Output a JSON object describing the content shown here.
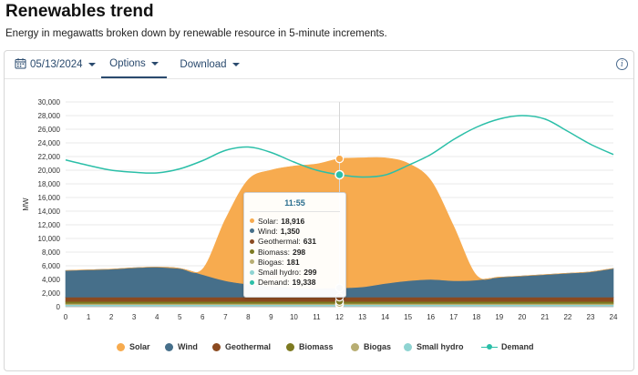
{
  "page": {
    "title": "Renewables trend",
    "subtitle": "Energy in megawatts broken down by renewable resource in 5-minute increments."
  },
  "toolbar": {
    "date": "05/13/2024",
    "options_label": "Options",
    "download_label": "Download",
    "info_icon": "info-icon",
    "calendar_icon": "calendar-icon"
  },
  "colors": {
    "solar": "#f7ab4f",
    "wind": "#466f8a",
    "geothermal": "#8b4a20",
    "biomass": "#7d7a21",
    "biogas": "#b8ae73",
    "small_hydro": "#8fd4d2",
    "demand": "#2bbfa8"
  },
  "chart_data": {
    "type": "area",
    "title": "",
    "xlabel": "",
    "ylabel": "MW",
    "xlim": [
      0,
      24
    ],
    "ylim": [
      0,
      30000
    ],
    "x_ticks": [
      0,
      1,
      2,
      3,
      4,
      5,
      6,
      7,
      8,
      9,
      10,
      11,
      12,
      13,
      14,
      15,
      16,
      17,
      18,
      19,
      20,
      21,
      22,
      23,
      24
    ],
    "y_ticks": [
      0,
      2000,
      4000,
      6000,
      8000,
      10000,
      12000,
      14000,
      16000,
      18000,
      20000,
      22000,
      24000,
      26000,
      28000,
      30000
    ],
    "y_tick_labels": [
      "0",
      "2,000",
      "4,000",
      "6,000",
      "8,000",
      "10,000",
      "12,000",
      "14,000",
      "16,000",
      "18,000",
      "20,000",
      "22,000",
      "24,000",
      "26,000",
      "28,000",
      "30,000"
    ],
    "grid": true,
    "legend_position": "bottom",
    "x": [
      0,
      1,
      2,
      3,
      4,
      5,
      6,
      7,
      8,
      9,
      10,
      11,
      12,
      13,
      14,
      15,
      16,
      17,
      18,
      19,
      20,
      21,
      22,
      23,
      24
    ],
    "stacked_series": [
      {
        "name": "Small hydro",
        "key": "small_hydro",
        "values": [
          300,
          300,
          300,
          300,
          300,
          300,
          300,
          300,
          300,
          300,
          300,
          300,
          299,
          300,
          300,
          300,
          300,
          300,
          300,
          300,
          300,
          300,
          300,
          300,
          300
        ]
      },
      {
        "name": "Biogas",
        "key": "biogas",
        "values": [
          180,
          180,
          180,
          180,
          180,
          180,
          180,
          180,
          180,
          180,
          180,
          180,
          181,
          180,
          180,
          180,
          180,
          180,
          180,
          180,
          180,
          180,
          180,
          180,
          180
        ]
      },
      {
        "name": "Biomass",
        "key": "biomass",
        "values": [
          300,
          300,
          300,
          300,
          300,
          300,
          300,
          300,
          300,
          300,
          300,
          300,
          298,
          300,
          300,
          300,
          300,
          300,
          300,
          300,
          300,
          300,
          300,
          300,
          300
        ]
      },
      {
        "name": "Geothermal",
        "key": "geothermal",
        "values": [
          630,
          630,
          630,
          630,
          630,
          630,
          630,
          630,
          630,
          630,
          630,
          630,
          631,
          630,
          630,
          630,
          630,
          630,
          630,
          630,
          630,
          630,
          630,
          630,
          630
        ]
      },
      {
        "name": "Wind",
        "key": "wind",
        "values": [
          3900,
          4000,
          4100,
          4300,
          4400,
          4200,
          3300,
          2400,
          1900,
          1600,
          1400,
          1300,
          1350,
          1500,
          2000,
          2400,
          2600,
          2400,
          2500,
          2900,
          3100,
          3300,
          3500,
          3700,
          4200
        ]
      },
      {
        "name": "Solar",
        "key": "solar",
        "values": [
          0,
          0,
          0,
          0,
          0,
          0,
          800,
          9000,
          15300,
          17000,
          17800,
          18200,
          18916,
          18900,
          18400,
          17200,
          14500,
          8000,
          700,
          50,
          0,
          0,
          0,
          0,
          0
        ]
      }
    ],
    "line_series": [
      {
        "name": "Demand",
        "key": "demand",
        "values": [
          21500,
          20700,
          20000,
          19700,
          19600,
          20200,
          21400,
          22900,
          23400,
          22600,
          21200,
          20000,
          19338,
          19000,
          19300,
          20700,
          22300,
          24500,
          26300,
          27500,
          28000,
          27500,
          25700,
          23800,
          22300
        ]
      }
    ],
    "hover": {
      "x": 12,
      "label": "11:55",
      "rows": [
        {
          "name": "Solar",
          "key": "solar",
          "value": "18,916"
        },
        {
          "name": "Wind",
          "key": "wind",
          "value": "1,350"
        },
        {
          "name": "Geothermal",
          "key": "geothermal",
          "value": "631"
        },
        {
          "name": "Biomass",
          "key": "biomass",
          "value": "298"
        },
        {
          "name": "Biogas",
          "key": "biogas",
          "value": "181"
        },
        {
          "name": "Small hydro",
          "key": "small_hydro",
          "value": "299"
        },
        {
          "name": "Demand",
          "key": "demand",
          "value": "19,338"
        }
      ]
    }
  },
  "legend": {
    "items": [
      {
        "name": "Solar",
        "key": "solar"
      },
      {
        "name": "Wind",
        "key": "wind"
      },
      {
        "name": "Geothermal",
        "key": "geothermal"
      },
      {
        "name": "Biomass",
        "key": "biomass"
      },
      {
        "name": "Biogas",
        "key": "biogas"
      },
      {
        "name": "Small hydro",
        "key": "small_hydro"
      },
      {
        "name": "Demand",
        "key": "demand"
      }
    ]
  }
}
